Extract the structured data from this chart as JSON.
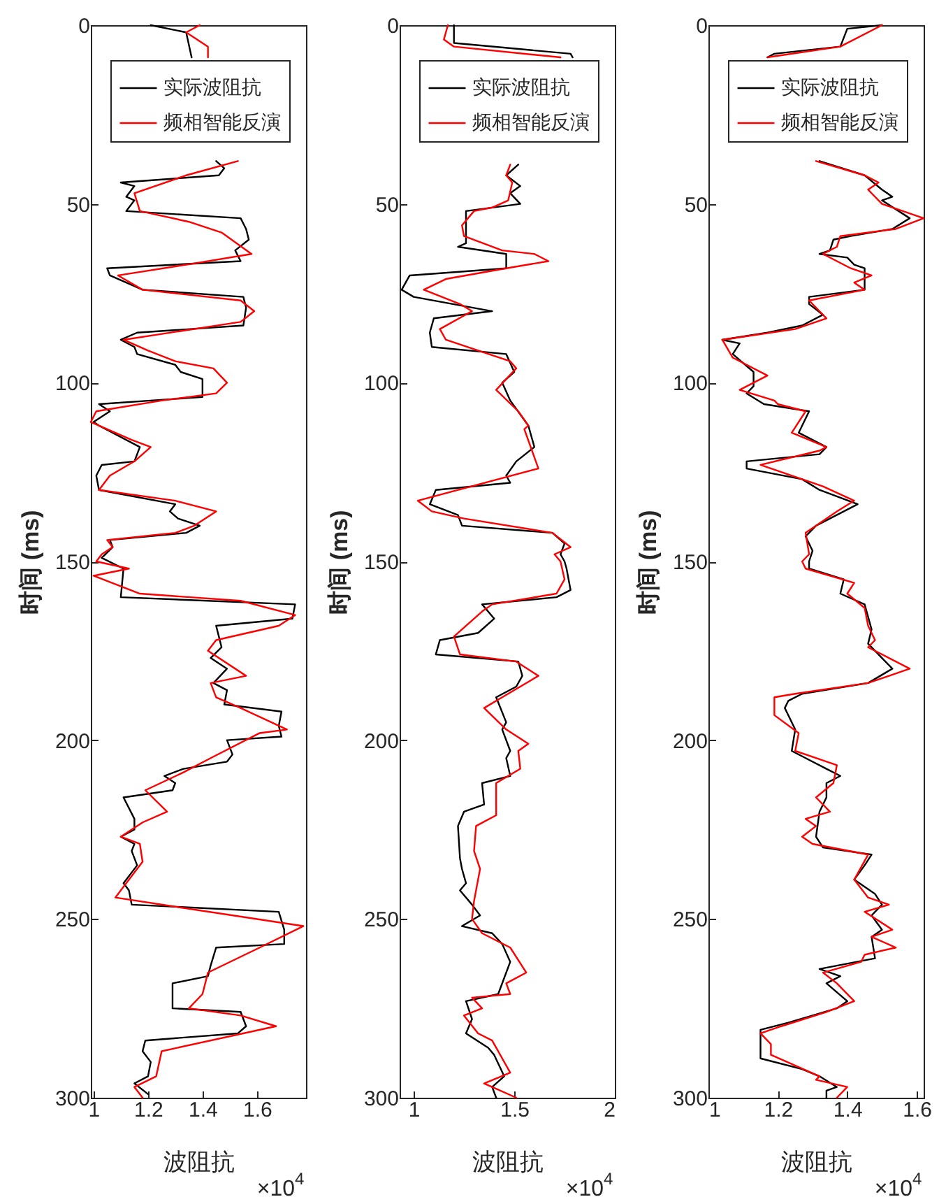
{
  "chart_data": [
    {
      "type": "line",
      "xlabel": "波阻抗",
      "ylabel": "时间 (ms)",
      "annotations": [
        "×10$^{4}$"
      ],
      "legend": "top right",
      "xlim": [
        0.99,
        1.78
      ],
      "xticks": [
        1,
        1.2,
        1.4,
        1.6
      ],
      "ylim": [
        300,
        0
      ],
      "yticks": [
        0,
        50,
        100,
        150,
        200,
        250,
        300
      ],
      "series": [
        {
          "name": "实际波阻抗",
          "color": "#000000",
          "x": [
            1.21,
            1.34,
            1.36,
            null,
            1.45,
            1.48,
            1.46,
            1.1,
            1.15,
            1.12,
            1.15,
            1.12,
            1.54,
            1.56,
            1.57,
            1.52,
            1.54,
            1.05,
            1.06,
            1.18,
            1.55,
            1.56,
            1.55,
            1.16,
            1.1,
            1.15,
            1.16,
            1.3,
            1.32,
            1.4,
            1.4,
            1.02,
            1.06,
            1.0,
            1.02,
            1.17,
            1.15,
            1.03,
            1.01,
            1.02,
            1.3,
            1.28,
            1.31,
            1.39,
            1.34,
            1.06,
            1.07,
            1.03,
            1.11,
            1.1,
            1.74,
            1.73,
            1.45,
            1.47,
            1.43,
            1.49,
            1.44,
            1.49,
            1.48,
            1.69,
            1.68,
            1.69,
            1.49,
            1.51,
            1.49,
            1.33,
            1.26,
            1.3,
            1.29,
            1.11,
            1.15,
            1.15,
            1.1,
            1.15,
            1.14,
            1.16,
            1.11,
            1.13,
            1.14,
            1.68,
            1.7,
            1.7,
            1.45,
            1.43,
            1.42,
            1.29,
            1.29,
            1.29,
            1.54,
            1.56,
            1.53,
            1.19,
            1.18,
            1.21,
            1.2,
            1.15,
            1.2
          ],
          "values": [
            0,
            2,
            9,
            null,
            38,
            40,
            42,
            44,
            45,
            48,
            49,
            52,
            54,
            57,
            60,
            63,
            66,
            68,
            70,
            74,
            76,
            79,
            84,
            86,
            88,
            90,
            92,
            95,
            97,
            99,
            104,
            106,
            108,
            111,
            112,
            118,
            122,
            123,
            126,
            130,
            134,
            136,
            138,
            140,
            142,
            144,
            146,
            149,
            152,
            160,
            162,
            166,
            168,
            174,
            177,
            180,
            184,
            186,
            190,
            192,
            196,
            199,
            200,
            204,
            206,
            208,
            210,
            212,
            214,
            216,
            222,
            225,
            227,
            229,
            231,
            235,
            240,
            242,
            246,
            248,
            253,
            257,
            258,
            263,
            266,
            268,
            271,
            275,
            276,
            280,
            282,
            284,
            287,
            290,
            294,
            296,
            299
          ]
        },
        {
          "name": "频相智能反演",
          "color": "#ff0000",
          "x": [
            1.39,
            1.34,
            1.42,
            1.42,
            null,
            1.53,
            1.34,
            1.15,
            1.17,
            1.35,
            1.47,
            1.58,
            1.34,
            1.09,
            1.18,
            1.54,
            1.59,
            1.54,
            1.11,
            1.2,
            1.3,
            1.44,
            1.49,
            1.45,
            1.25,
            1.01,
            0.99,
            1.14,
            1.21,
            1.15,
            1.06,
            1.02,
            1.3,
            1.45,
            1.37,
            1.3,
            1.05,
            1.07,
            1.03,
            1.01,
            1.13,
            1.0,
            1.17,
            1.54,
            1.74,
            1.68,
            1.45,
            1.42,
            1.56,
            1.43,
            1.45,
            1.54,
            1.71,
            1.61,
            1.43,
            1.33,
            1.19,
            1.27,
            1.18,
            1.1,
            1.17,
            1.18,
            1.08,
            1.77,
            1.61,
            1.42,
            1.4,
            1.35,
            1.54,
            1.67,
            1.25,
            1.23,
            1.15,
            1.18
          ],
          "values": [
            0,
            2,
            6,
            9,
            null,
            38,
            42,
            47,
            52,
            55,
            58,
            64,
            67,
            70,
            74,
            77,
            80,
            83,
            88,
            91,
            94,
            96,
            100,
            103,
            105,
            108,
            111,
            116,
            118,
            122,
            126,
            130,
            133,
            136,
            140,
            142,
            144,
            146,
            148,
            150,
            152,
            154,
            159,
            161,
            165,
            168,
            172,
            175,
            182,
            184,
            188,
            191,
            197,
            198,
            205,
            209,
            214,
            220,
            223,
            227,
            229,
            234,
            244,
            252,
            258,
            265,
            271,
            275,
            277,
            280,
            287,
            294,
            297,
            300
          ]
        }
      ]
    },
    {
      "type": "line",
      "xlabel": "波阻抗",
      "ylabel": "时间 (ms)",
      "annotations": [
        "×10$^{4}$"
      ],
      "legend": "top right",
      "xlim": [
        0.93,
        2
      ],
      "xticks": [
        1,
        1.5,
        2
      ],
      "ylim": [
        300,
        0
      ],
      "yticks": [
        0,
        50,
        100,
        150,
        200,
        250,
        300
      ],
      "series": [
        {
          "name": "实际波阻抗",
          "color": "#000000",
          "x": [
            1.2,
            1.2,
            1.78,
            1.79,
            null,
            1.52,
            1.46,
            1.53,
            1.48,
            1.53,
            1.26,
            1.26,
            1.22,
            1.46,
            1.46,
            0.98,
            0.94,
            1.0,
            1.39,
            1.1,
            1.08,
            1.09,
            1.46,
            1.5,
            1.44,
            1.48,
            1.57,
            1.6,
            1.51,
            1.46,
            1.48,
            1.11,
            1.08,
            1.22,
            1.24,
            1.69,
            1.75,
            1.73,
            1.75,
            1.76,
            1.78,
            1.71,
            1.34,
            1.4,
            1.32,
            1.13,
            1.11,
            1.52,
            1.54,
            1.51,
            1.41,
            1.46,
            1.44,
            1.48,
            1.46,
            1.48,
            1.34,
            1.35,
            1.25,
            1.22,
            1.23,
            1.24,
            1.26,
            1.23,
            1.29,
            1.33,
            1.24,
            1.39,
            1.44,
            1.48,
            1.42,
            1.26,
            1.29,
            1.26,
            1.37,
            1.4,
            1.45,
            1.39,
            1.41
          ],
          "values": [
            0,
            5,
            8,
            9,
            null,
            39,
            42,
            45,
            47,
            50,
            52,
            61,
            62,
            64,
            68,
            70,
            74,
            76,
            80,
            82,
            86,
            90,
            92,
            97,
            100,
            105,
            112,
            118,
            122,
            126,
            128,
            130,
            134,
            137,
            140,
            142,
            145,
            148,
            150,
            152,
            158,
            160,
            162,
            166,
            170,
            172,
            176,
            178,
            182,
            185,
            188,
            195,
            197,
            203,
            205,
            210,
            212,
            218,
            220,
            224,
            233,
            236,
            240,
            242,
            246,
            249,
            252,
            254,
            257,
            262,
            271,
            273,
            278,
            282,
            286,
            288,
            294,
            297,
            300
          ]
        },
        {
          "name": "频相智能反演",
          "color": "#ff0000",
          "x": [
            1.17,
            1.15,
            1.2,
            1.73,
            null,
            1.48,
            1.46,
            1.49,
            1.47,
            1.39,
            1.3,
            1.24,
            1.25,
            1.44,
            1.6,
            1.67,
            1.46,
            1.16,
            1.05,
            1.23,
            1.29,
            1.13,
            1.16,
            1.48,
            1.51,
            1.41,
            1.52,
            1.57,
            1.55,
            1.62,
            1.02,
            1.09,
            1.25,
            1.69,
            1.78,
            1.7,
            1.73,
            1.75,
            1.71,
            1.39,
            1.34,
            1.2,
            1.23,
            1.51,
            1.62,
            1.44,
            1.35,
            1.46,
            1.57,
            1.52,
            1.53,
            1.41,
            1.41,
            1.31,
            1.3,
            1.33,
            1.3,
            1.29,
            1.34,
            1.48,
            1.56,
            1.46,
            1.48,
            1.29,
            1.34,
            1.25,
            1.32,
            1.39,
            1.48,
            1.35,
            1.39,
            1.51
          ],
          "values": [
            0,
            4,
            6,
            9,
            null,
            39,
            42,
            44,
            49,
            51,
            52,
            56,
            59,
            63,
            64,
            66,
            68,
            71,
            74,
            78,
            80,
            85,
            88,
            94,
            96,
            102,
            108,
            112,
            113,
            124,
            133,
            136,
            138,
            142,
            146,
            148,
            150,
            155,
            159,
            162,
            164,
            171,
            176,
            178,
            182,
            188,
            191,
            197,
            201,
            203,
            208,
            212,
            221,
            224,
            231,
            236,
            245,
            250,
            254,
            258,
            265,
            268,
            271,
            272,
            275,
            277,
            282,
            284,
            293,
            296,
            297,
            300
          ]
        }
      ]
    },
    {
      "type": "line",
      "xlabel": "波阻抗",
      "ylabel": "时间 (ms)",
      "annotations": [
        "×10$^{4}$"
      ],
      "legend": "top right",
      "xlim": [
        1,
        1.62
      ],
      "xticks": [
        1,
        1.2,
        1.4,
        1.6
      ],
      "ylim": [
        300,
        0
      ],
      "yticks": [
        0,
        50,
        100,
        150,
        200,
        250,
        300
      ],
      "series": [
        {
          "name": "实际波阻抗",
          "color": "#000000",
          "x": [
            1.5,
            1.4,
            1.38,
            1.19,
            1.17,
            null,
            1.32,
            1.45,
            1.5,
            1.53,
            1.5,
            1.58,
            1.53,
            1.41,
            1.36,
            1.35,
            1.32,
            1.4,
            1.42,
            1.45,
            1.45,
            1.29,
            1.29,
            1.33,
            1.27,
            1.17,
            1.04,
            1.09,
            1.07,
            1.13,
            1.13,
            1.11,
            1.16,
            1.29,
            1.26,
            1.34,
            1.32,
            1.11,
            1.11,
            1.27,
            1.32,
            1.43,
            1.31,
            1.28,
            1.3,
            1.29,
            1.29,
            1.39,
            1.38,
            1.45,
            1.47,
            1.46,
            1.53,
            1.46,
            1.27,
            1.23,
            1.22,
            1.25,
            1.24,
            1.28,
            1.34,
            1.38,
            1.34,
            1.34,
            1.32,
            1.31,
            1.33,
            1.47,
            1.45,
            1.42,
            1.48,
            1.5,
            1.47,
            1.5,
            1.47,
            1.48,
            1.32,
            1.38,
            1.34,
            1.4,
            1.37,
            1.23,
            1.15,
            1.15,
            1.27,
            1.32,
            1.37,
            1.34,
            1.34
          ],
          "values": [
            0,
            1,
            6,
            8,
            9,
            null,
            38,
            42,
            46,
            48,
            49,
            54,
            57,
            59,
            60,
            63,
            64,
            65,
            67,
            68,
            74,
            76,
            78,
            81,
            84,
            86,
            88,
            89,
            92,
            97,
            101,
            103,
            106,
            108,
            114,
            118,
            120,
            122,
            124,
            127,
            130,
            134,
            140,
            143,
            147,
            150,
            152,
            155,
            159,
            162,
            169,
            173,
            180,
            184,
            187,
            189,
            191,
            197,
            203,
            205,
            208,
            210,
            212,
            216,
            220,
            227,
            230,
            232,
            235,
            239,
            243,
            246,
            249,
            253,
            255,
            261,
            264,
            266,
            268,
            273,
            275,
            279,
            281,
            289,
            292,
            294,
            297,
            298,
            300
          ]
        },
        {
          "name": "频相智能反演",
          "color": "#ff0000",
          "x": [
            1.5,
            1.38,
            1.17,
            null,
            1.31,
            1.45,
            1.49,
            1.46,
            1.5,
            1.62,
            1.54,
            1.38,
            1.37,
            1.33,
            1.41,
            1.47,
            1.42,
            1.45,
            1.29,
            1.34,
            1.25,
            1.04,
            1.07,
            1.17,
            1.09,
            1.19,
            1.2,
            1.28,
            1.24,
            1.34,
            1.32,
            1.15,
            1.27,
            1.33,
            1.42,
            1.37,
            1.28,
            1.29,
            1.27,
            1.28,
            1.42,
            1.4,
            1.45,
            1.46,
            1.48,
            1.46,
            1.58,
            1.46,
            1.25,
            1.19,
            1.19,
            1.26,
            1.25,
            1.31,
            1.37,
            1.36,
            1.31,
            1.35,
            1.28,
            1.31,
            1.27,
            1.3,
            1.46,
            1.42,
            1.46,
            1.52,
            1.45,
            1.53,
            1.47,
            1.54,
            1.45,
            1.44,
            1.33,
            1.37,
            1.42,
            1.34,
            1.21,
            1.15,
            1.18,
            1.18,
            1.32,
            1.31,
            1.4,
            1.37
          ],
          "values": [
            0,
            6,
            9,
            null,
            38,
            42,
            44,
            46,
            50,
            54,
            57,
            59,
            62,
            64,
            68,
            70,
            72,
            74,
            77,
            82,
            85,
            88,
            93,
            98,
            102,
            105,
            106,
            108,
            114,
            118,
            119,
            123,
            127,
            129,
            133,
            136,
            142,
            148,
            150,
            152,
            156,
            159,
            163,
            168,
            172,
            174,
            180,
            184,
            187,
            188,
            193,
            198,
            203,
            205,
            207,
            212,
            216,
            220,
            222,
            224,
            227,
            229,
            232,
            239,
            244,
            246,
            248,
            253,
            255,
            258,
            260,
            262,
            265,
            268,
            273,
            276,
            280,
            282,
            285,
            288,
            294,
            295,
            297,
            300
          ]
        }
      ]
    }
  ]
}
